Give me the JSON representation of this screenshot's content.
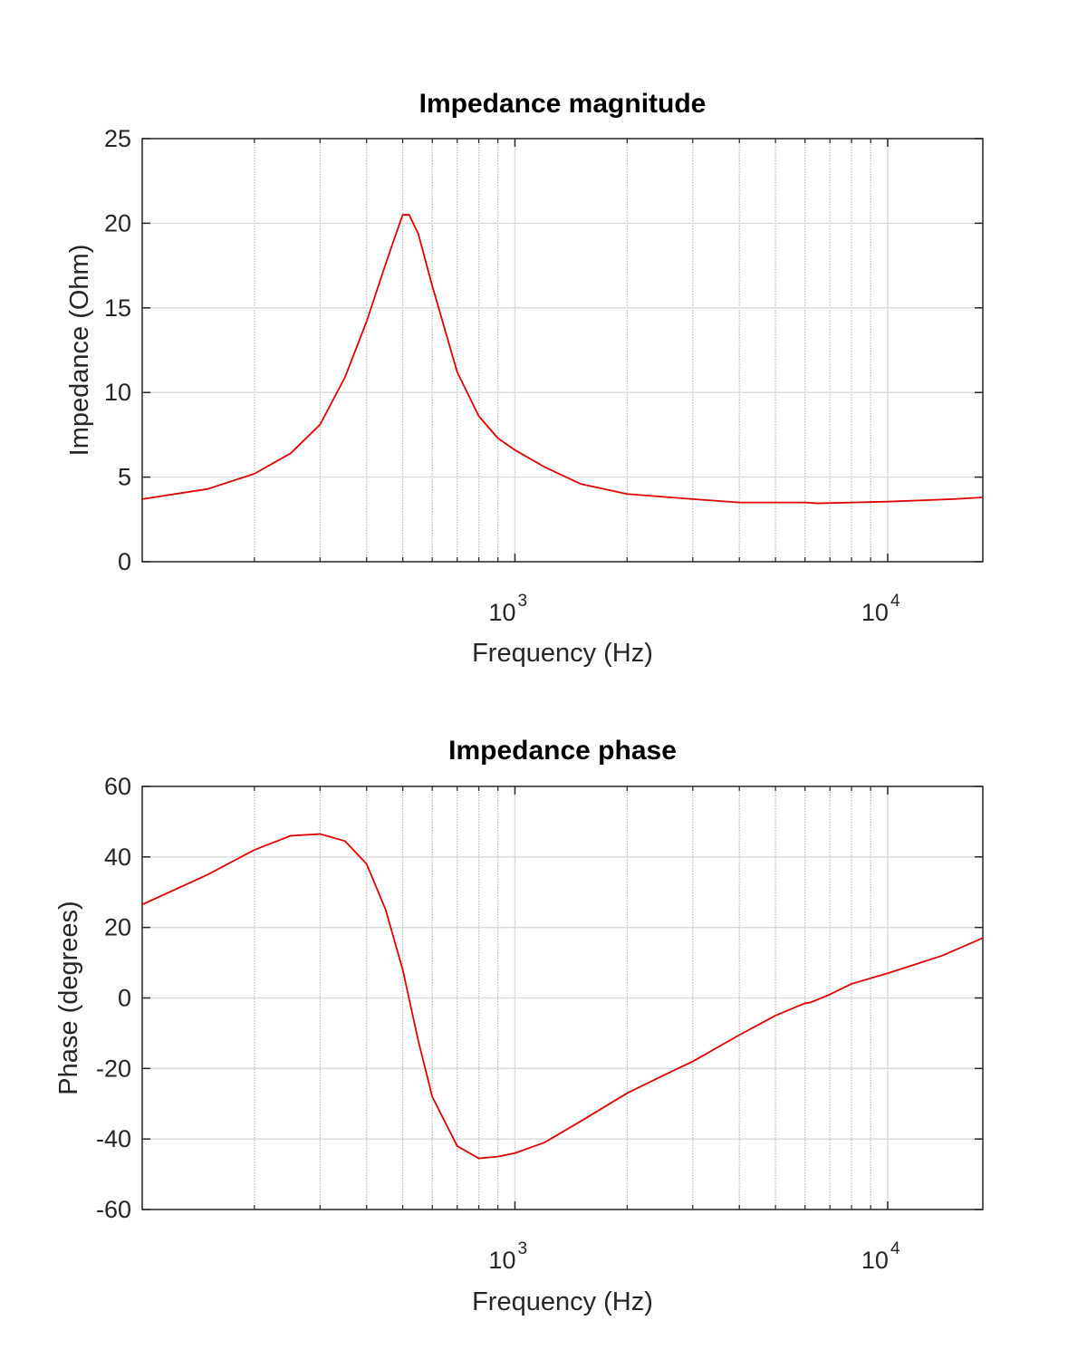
{
  "chart_data": [
    {
      "type": "line",
      "title": "Impedance magnitude",
      "xlabel": "Frequency (Hz)",
      "ylabel": "Impedance (Ohm)",
      "xscale": "log",
      "xlim": [
        100,
        18000
      ],
      "ylim": [
        0,
        25
      ],
      "yticks": [
        0,
        5,
        10,
        15,
        20,
        25
      ],
      "xticks": [
        {
          "value": 1000,
          "base": "10",
          "exp": "3"
        },
        {
          "value": 10000,
          "base": "10",
          "exp": "4"
        }
      ],
      "grid": true,
      "line_color": "#e00000",
      "series": [
        {
          "x": [
            100,
            150,
            200,
            250,
            300,
            350,
            400,
            450,
            480,
            500,
            520,
            550,
            600,
            700,
            800,
            900,
            1000,
            1200,
            1500,
            2000,
            3000,
            4000,
            5000,
            6000,
            6500,
            8000,
            10000,
            15000,
            18000
          ],
          "y": [
            3.7,
            4.3,
            5.2,
            6.4,
            8.1,
            10.9,
            14.2,
            17.6,
            19.4,
            20.5,
            20.5,
            19.4,
            16.3,
            11.2,
            8.6,
            7.3,
            6.6,
            5.6,
            4.6,
            4.0,
            3.7,
            3.5,
            3.5,
            3.5,
            3.45,
            3.5,
            3.55,
            3.7,
            3.8
          ]
        }
      ]
    },
    {
      "type": "line",
      "title": "Impedance phase",
      "xlabel": "Frequency (Hz)",
      "ylabel": "Phase (degrees)",
      "xscale": "log",
      "xlim": [
        100,
        18000
      ],
      "ylim": [
        -60,
        60
      ],
      "yticks": [
        -60,
        -40,
        -20,
        0,
        20,
        40,
        60
      ],
      "xticks": [
        {
          "value": 1000,
          "base": "10",
          "exp": "3"
        },
        {
          "value": 10000,
          "base": "10",
          "exp": "4"
        }
      ],
      "grid": true,
      "line_color": "#e00000",
      "series": [
        {
          "x": [
            100,
            150,
            200,
            250,
            300,
            350,
            400,
            450,
            500,
            550,
            600,
            700,
            800,
            900,
            1000,
            1200,
            1500,
            2000,
            2500,
            3000,
            4000,
            5000,
            6000,
            6200,
            7000,
            8000,
            10000,
            14000,
            18000
          ],
          "y": [
            26.5,
            35,
            42,
            46,
            46.5,
            44.5,
            38,
            25,
            8,
            -12,
            -28,
            -42,
            -45.5,
            -45,
            -44,
            -41,
            -35,
            -27,
            -22,
            -18,
            -10.5,
            -5,
            -1.5,
            -1.3,
            1,
            4,
            7,
            12,
            17
          ]
        }
      ]
    }
  ]
}
